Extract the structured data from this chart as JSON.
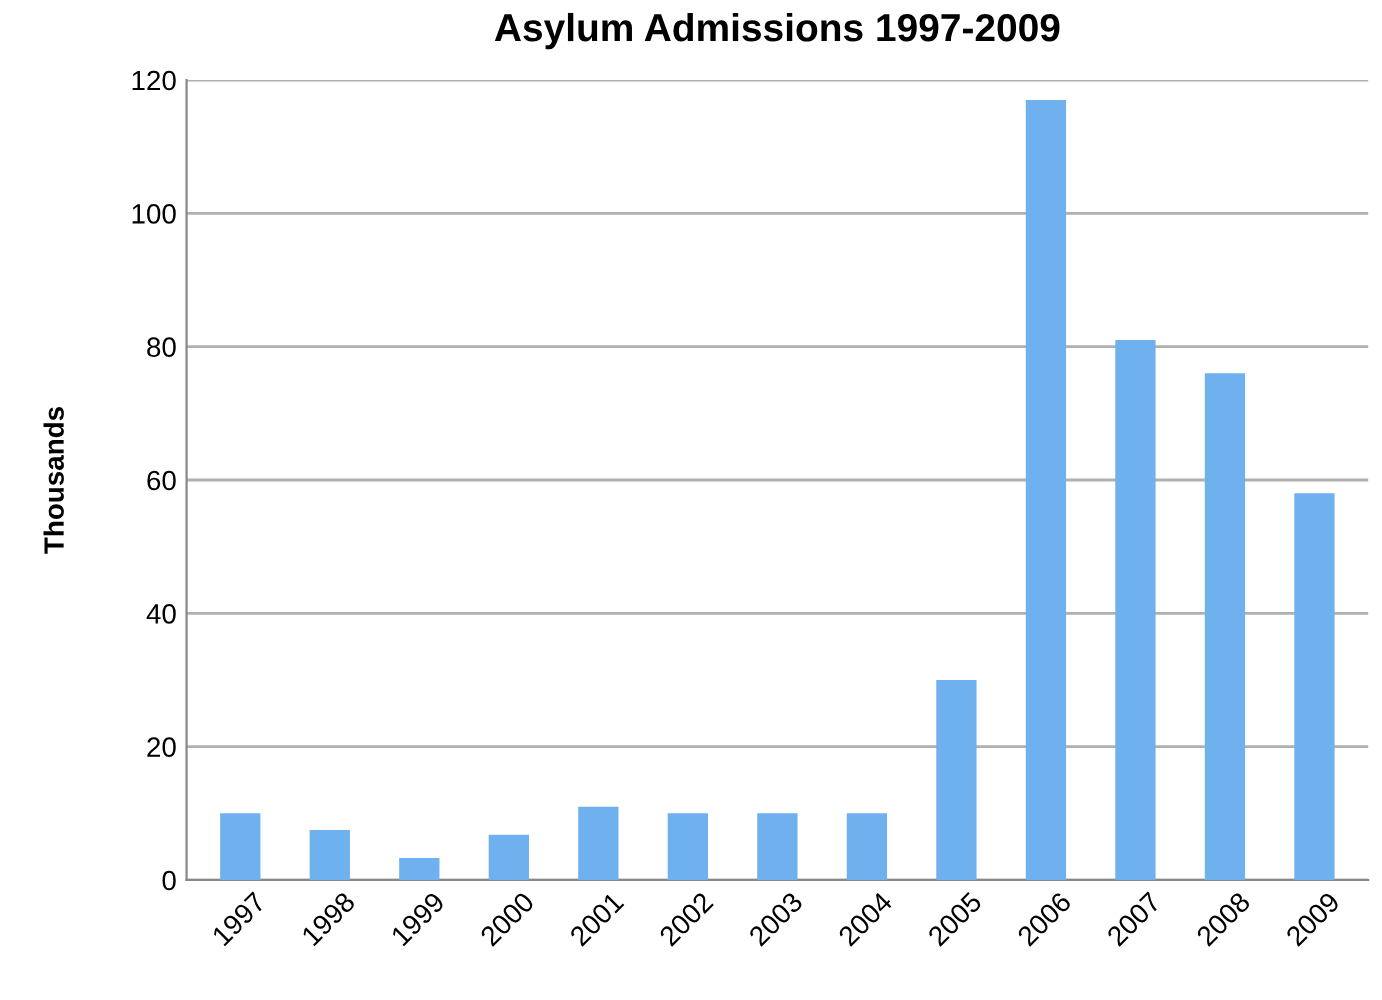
{
  "chart_data": {
    "type": "bar",
    "title": "Asylum Admissions 1997-2009",
    "ylabel": "Thousands",
    "categories": [
      "1997",
      "1998",
      "1999",
      "2000",
      "2001",
      "2002",
      "2003",
      "2004",
      "2005",
      "2006",
      "2007",
      "2008",
      "2009"
    ],
    "values": [
      10,
      7.5,
      3.3,
      6.8,
      11,
      10,
      10,
      10,
      30,
      117,
      81,
      76,
      58
    ],
    "color": "#6fb0ee",
    "ylim": [
      0,
      120
    ],
    "yticks": [
      0,
      20,
      40,
      60,
      80,
      100,
      120
    ],
    "grid": "y"
  }
}
